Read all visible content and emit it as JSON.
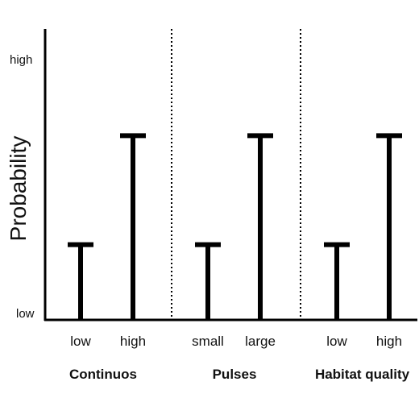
{
  "chart_data": {
    "type": "bar",
    "style": "T-bar",
    "ylabel": "Probability",
    "y_tick_labels": {
      "top": "high",
      "bottom": "low"
    },
    "ylim": [
      0,
      1
    ],
    "grid": false,
    "legend": "none",
    "groups": [
      {
        "name": "Continuos",
        "categories": [
          "low",
          "high"
        ],
        "values": [
          0.29,
          0.71
        ]
      },
      {
        "name": "Pulses",
        "categories": [
          "small",
          "large"
        ],
        "values": [
          0.29,
          0.71
        ]
      },
      {
        "name": "Habitat quality",
        "categories": [
          "low",
          "high"
        ],
        "values": [
          0.29,
          0.71
        ]
      }
    ],
    "colors": {
      "axis": "#000000",
      "bar": "#000000",
      "separator": "#000000"
    }
  }
}
